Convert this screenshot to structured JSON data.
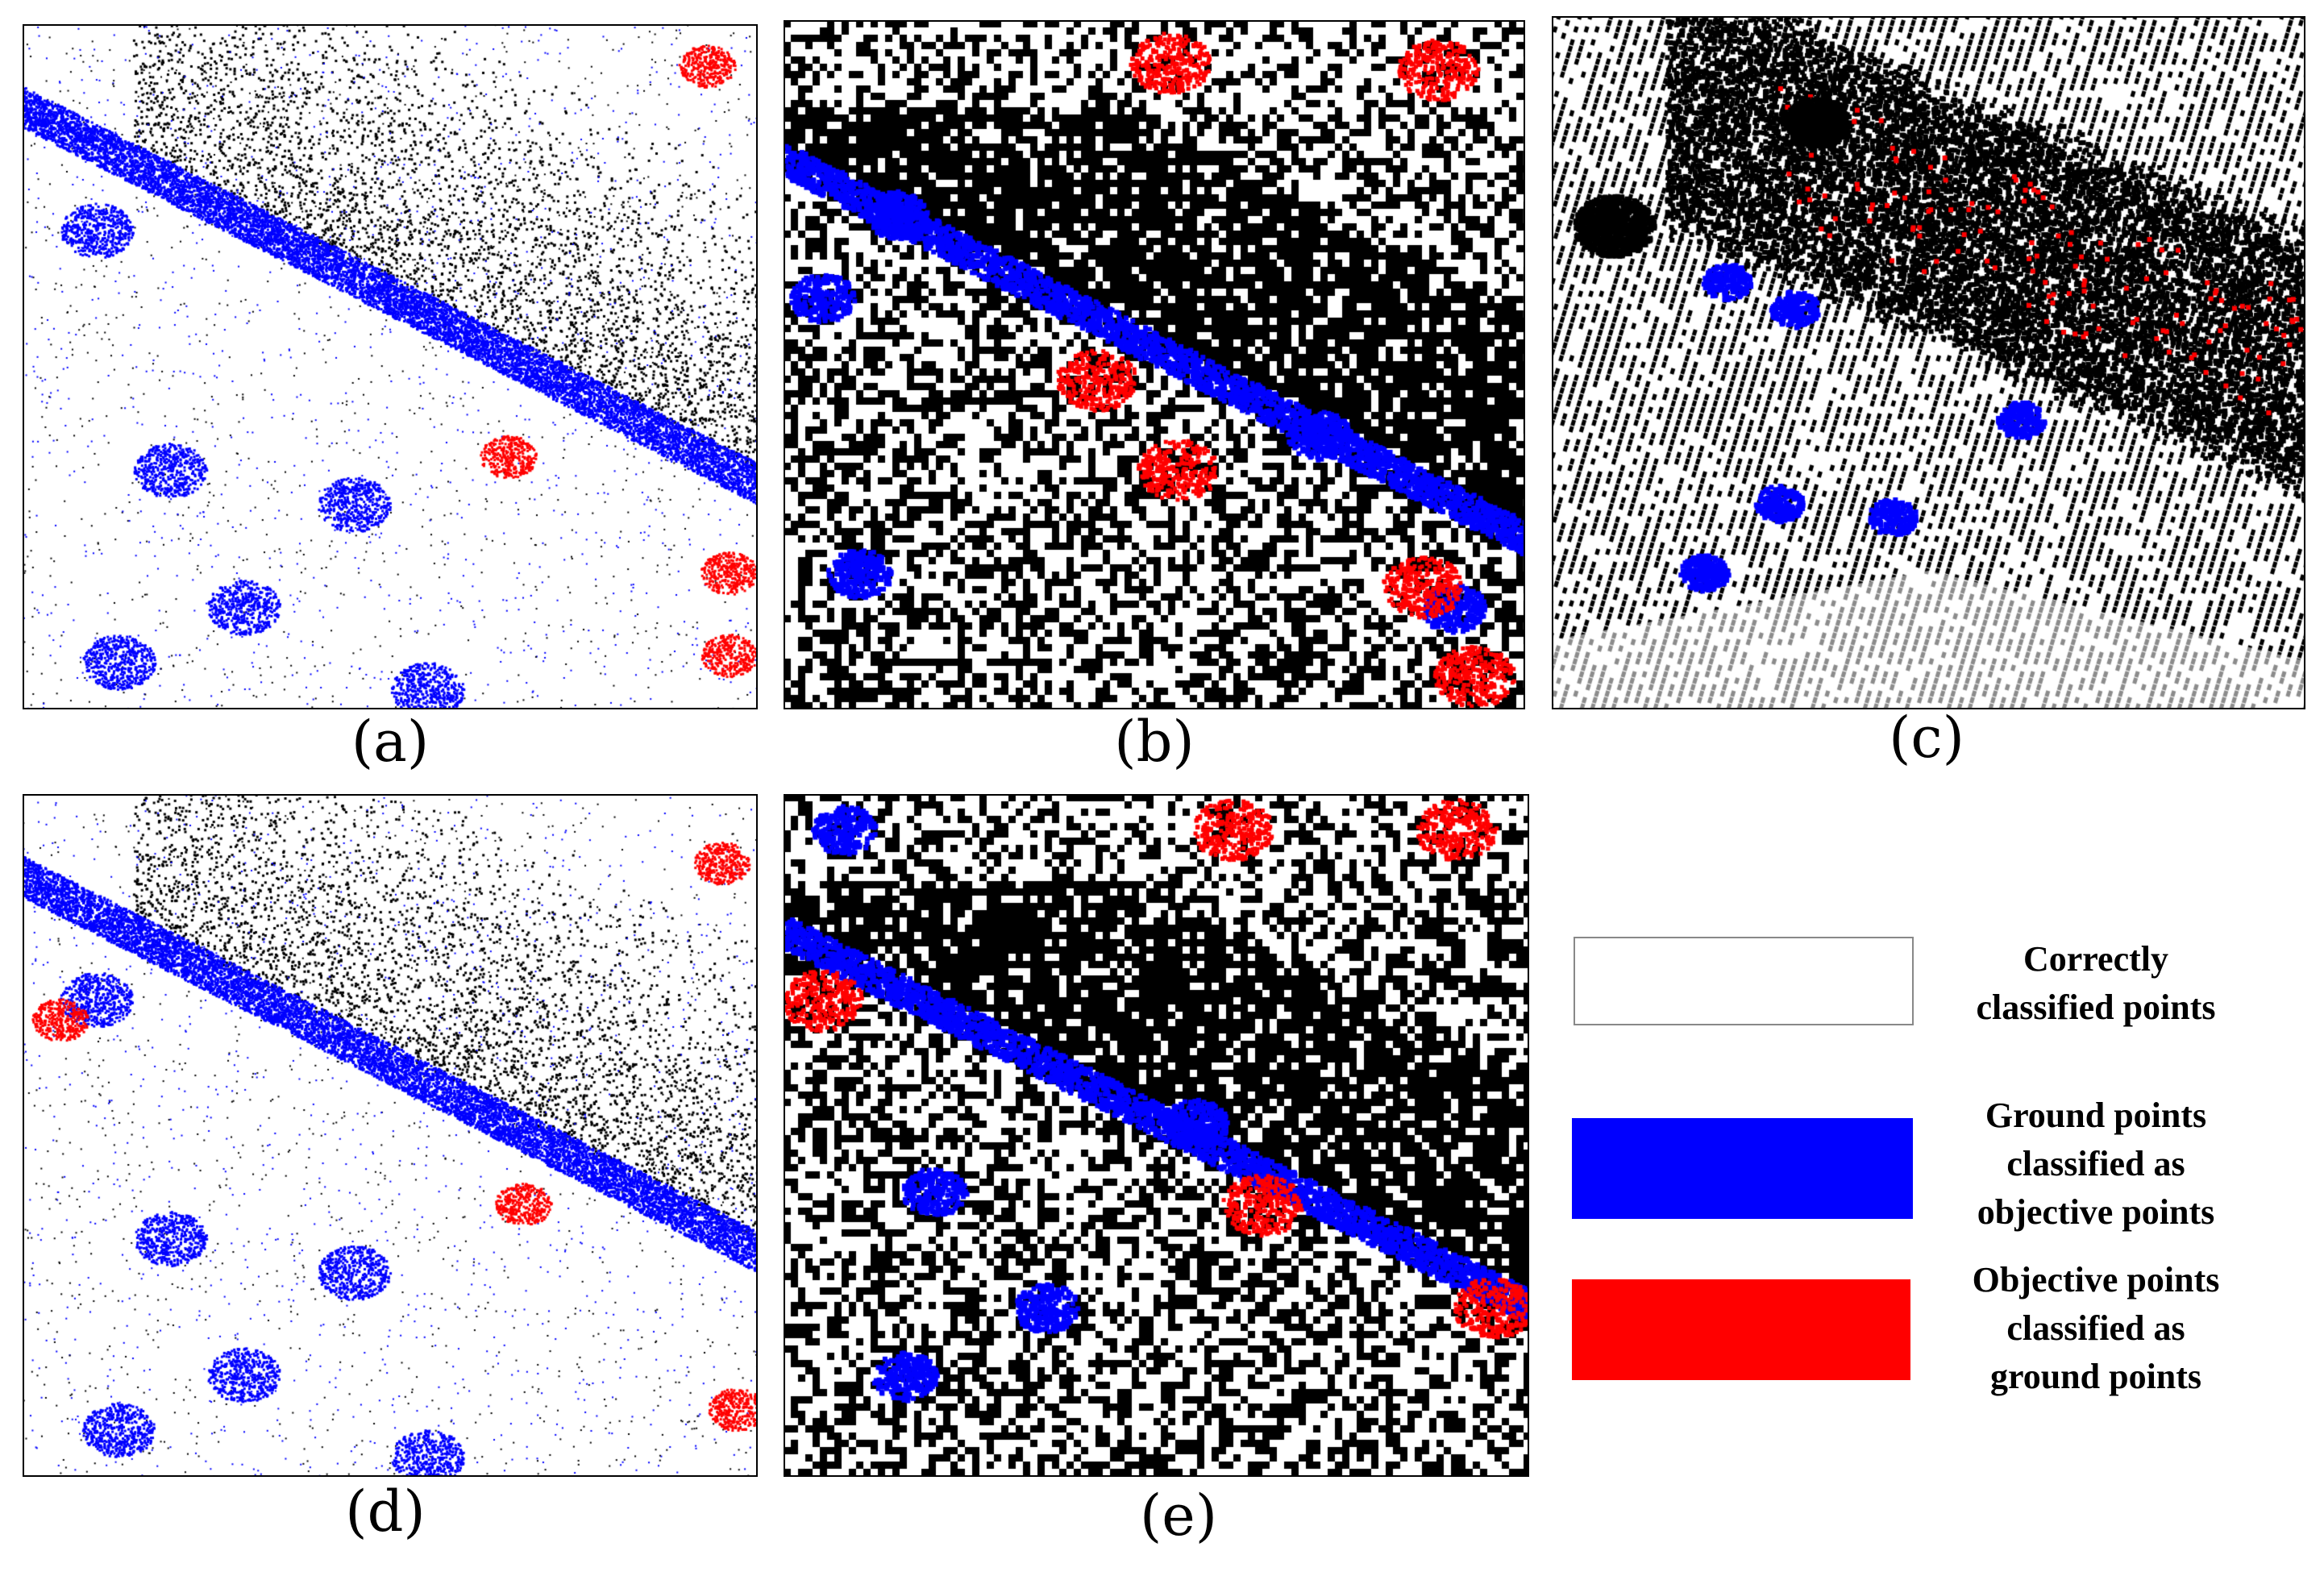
{
  "panels": [
    {
      "id": "a",
      "caption": "(a)",
      "profile": "a"
    },
    {
      "id": "b",
      "caption": "(b)",
      "profile": "b"
    },
    {
      "id": "c",
      "caption": "(c)",
      "profile": "c"
    },
    {
      "id": "d",
      "caption": "(d)",
      "profile": "d"
    },
    {
      "id": "e",
      "caption": "(e)",
      "profile": "e"
    }
  ],
  "legend": {
    "items": [
      {
        "key": "correct",
        "label_lines": [
          "Correctly",
          "classified points"
        ],
        "color": "#ffffff",
        "border": "#888888"
      },
      {
        "key": "ground_as_objective",
        "label_lines": [
          "Ground points",
          "classified as",
          "objective points"
        ],
        "color": "#0000ff",
        "border": "#0000ff"
      },
      {
        "key": "objective_as_ground",
        "label_lines": [
          "Objective points",
          "classified as",
          "ground points"
        ],
        "color": "#ff0000",
        "border": "#ff0000"
      }
    ]
  },
  "colors": {
    "object_points": "#000000",
    "ground_error": "#0000ff",
    "object_error": "#ff0000",
    "background": "#ffffff"
  }
}
